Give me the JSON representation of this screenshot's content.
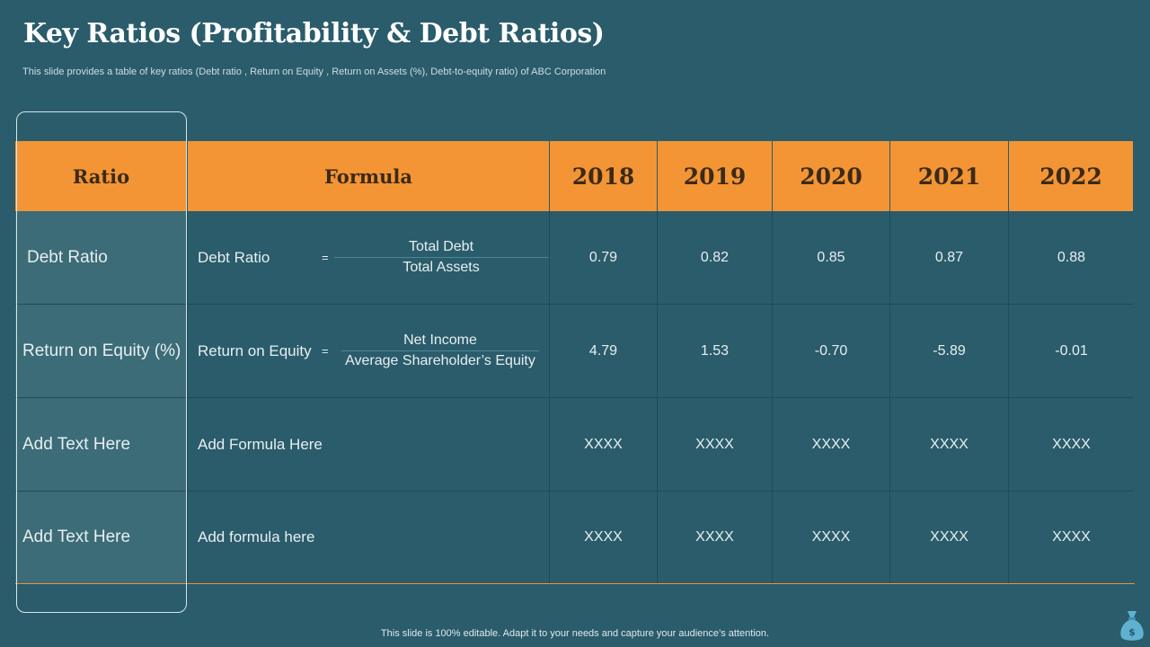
{
  "header": {
    "title": "Key Ratios (Profitability & Debt Ratios)",
    "subtitle": "This slide provides a table of key ratios (Debt ratio , Return on Equity , Return on Assets (%), Debt-to-equity  ratio) of ABC Corporation"
  },
  "table": {
    "headers": [
      "Ratio",
      "Formula",
      "2018",
      "2019",
      "2020",
      "2021",
      "2022"
    ],
    "rows": [
      {
        "ratio": "Debt Ratio",
        "formula_name": "Debt Ratio",
        "eq": "=",
        "numerator": "Total Debt",
        "denominator": "Total Assets",
        "values": [
          "0.79",
          "0.82",
          "0.85",
          "0.87",
          "0.88"
        ]
      },
      {
        "ratio": "Return on Equity (%)",
        "formula_name": "Return on Equity",
        "eq": "=",
        "numerator": "Net Income",
        "denominator": "Average Shareholder’s Equity",
        "values": [
          "4.79",
          "1.53",
          "-0.70",
          "-5.89",
          "-0.01"
        ]
      },
      {
        "ratio": "Add Text Here",
        "formula": "Add Formula Here",
        "values": [
          "XXXX",
          "XXXX",
          "XXXX",
          "XXXX",
          "XXXX"
        ]
      },
      {
        "ratio": "Add Text Here",
        "formula": "Add formula here",
        "values": [
          "XXXX",
          "XXXX",
          "XXXX",
          "XXXX",
          "XXXX"
        ]
      }
    ]
  },
  "footer": {
    "text": "This slide is 100% editable. Adapt it to your needs and capture your audience’s attention."
  },
  "icons": {
    "corner": "money-bag-icon"
  },
  "colors": {
    "background": "#2a5c6b",
    "header": "#f39535",
    "label_column": "#3b6c78"
  }
}
